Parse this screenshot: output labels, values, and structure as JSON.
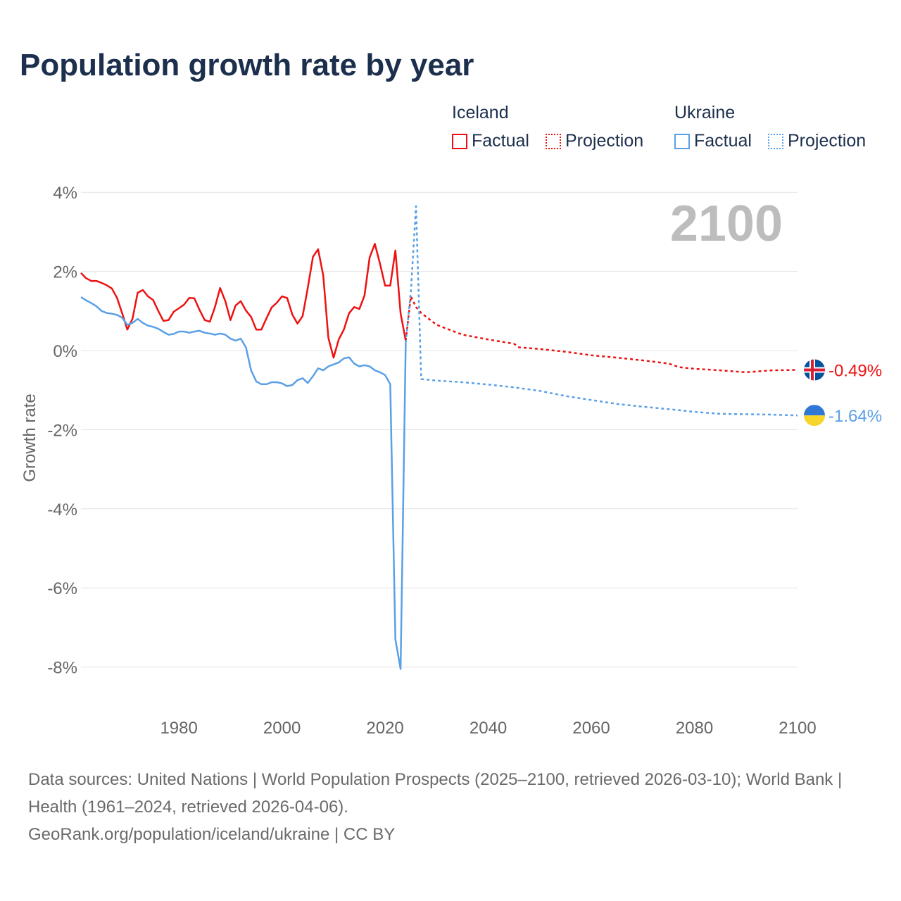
{
  "title": "Population growth rate by year",
  "legend": {
    "groups": [
      {
        "name": "Iceland",
        "color": "#ee1111",
        "factual": "Factual",
        "projection": "Projection"
      },
      {
        "name": "Ukraine",
        "color": "#5aa0e6",
        "factual": "Factual",
        "projection": "Projection"
      }
    ]
  },
  "year_label": "2100",
  "footer": {
    "sources": "Data sources: United Nations | World Population Prospects (2025–2100, retrieved 2026-03-10); World Bank | Health (1961–2024, retrieved 2026-04-06).",
    "credit": "GeoRank.org/population/iceland/ukraine | CC BY"
  },
  "chart_data": {
    "type": "line",
    "title": "Population growth rate by year",
    "ylabel": "Growth rate",
    "xlabel": "",
    "xlim": [
      1961,
      2100
    ],
    "ylim": [
      -8.8,
      4
    ],
    "yticks": [
      4,
      2,
      0,
      -2,
      -4,
      -6,
      -8
    ],
    "ytick_labels": [
      "4%",
      "2%",
      "0%",
      "-2%",
      "-4%",
      "-6%",
      "-8%"
    ],
    "xticks": [
      1980,
      2000,
      2020,
      2040,
      2060,
      2080,
      2100
    ],
    "xtick_labels": [
      "1980",
      "2000",
      "2020",
      "2040",
      "2060",
      "2080",
      "2100"
    ],
    "grid": true,
    "series": [
      {
        "name": "Iceland Factual",
        "color": "#ee1111",
        "style": "solid",
        "x_start": 1961,
        "values": [
          1.96,
          1.83,
          1.76,
          1.76,
          1.71,
          1.65,
          1.57,
          1.33,
          0.94,
          0.53,
          0.8,
          1.46,
          1.53,
          1.37,
          1.28,
          1.0,
          0.75,
          0.77,
          0.98,
          1.07,
          1.16,
          1.33,
          1.32,
          1.03,
          0.77,
          0.73,
          1.1,
          1.58,
          1.25,
          0.77,
          1.14,
          1.25,
          1.01,
          0.85,
          0.53,
          0.53,
          0.82,
          1.09,
          1.21,
          1.37,
          1.33,
          0.91,
          0.68,
          0.87,
          1.58,
          2.37,
          2.56,
          1.9,
          0.32,
          -0.18,
          0.28,
          0.53,
          0.94,
          1.1,
          1.05,
          1.39,
          2.35,
          2.7,
          2.2,
          1.64,
          1.64,
          2.53,
          0.94,
          0.25
        ]
      },
      {
        "name": "Iceland Projection",
        "color": "#ee1111",
        "style": "dotted",
        "x": [
          2024,
          2025,
          2026,
          2027,
          2028,
          2030,
          2035,
          2040,
          2045,
          2046,
          2050,
          2055,
          2060,
          2065,
          2070,
          2075,
          2077,
          2080,
          2085,
          2090,
          2095,
          2100
        ],
        "values": [
          0.25,
          1.37,
          1.1,
          0.95,
          0.85,
          0.65,
          0.4,
          0.28,
          0.17,
          0.08,
          0.04,
          -0.03,
          -0.12,
          -0.18,
          -0.25,
          -0.33,
          -0.42,
          -0.46,
          -0.5,
          -0.55,
          -0.5,
          -0.49
        ]
      },
      {
        "name": "Ukraine Factual",
        "color": "#5aa0e6",
        "style": "solid",
        "x_start": 1961,
        "values": [
          1.35,
          1.27,
          1.2,
          1.12,
          1.0,
          0.95,
          0.93,
          0.9,
          0.83,
          0.65,
          0.7,
          0.8,
          0.7,
          0.63,
          0.6,
          0.55,
          0.47,
          0.4,
          0.42,
          0.48,
          0.48,
          0.45,
          0.48,
          0.5,
          0.45,
          0.43,
          0.4,
          0.43,
          0.4,
          0.3,
          0.25,
          0.3,
          0.08,
          -0.5,
          -0.78,
          -0.85,
          -0.85,
          -0.8,
          -0.8,
          -0.83,
          -0.9,
          -0.87,
          -0.75,
          -0.7,
          -0.82,
          -0.65,
          -0.45,
          -0.5,
          -0.4,
          -0.35,
          -0.3,
          -0.2,
          -0.17,
          -0.33,
          -0.4,
          -0.37,
          -0.4,
          -0.5,
          -0.55,
          -0.62,
          -0.85,
          -7.3,
          -8.05,
          0.2
        ]
      },
      {
        "name": "Ukraine Projection",
        "color": "#5aa0e6",
        "style": "dotted",
        "x": [
          2024,
          2025,
          2026,
          2027,
          2030,
          2035,
          2040,
          2045,
          2050,
          2055,
          2060,
          2065,
          2070,
          2075,
          2080,
          2085,
          2090,
          2095,
          2100
        ],
        "values": [
          0.2,
          1.5,
          3.65,
          -0.72,
          -0.76,
          -0.8,
          -0.86,
          -0.93,
          -1.02,
          -1.15,
          -1.25,
          -1.35,
          -1.42,
          -1.48,
          -1.55,
          -1.6,
          -1.61,
          -1.62,
          -1.64
        ]
      }
    ],
    "end_labels": [
      {
        "country": "Iceland",
        "text": "-0.49%",
        "value": -0.49,
        "color": "#ee1111"
      },
      {
        "country": "Ukraine",
        "text": "-1.64%",
        "value": -1.64,
        "color": "#5aa0e6"
      }
    ]
  }
}
